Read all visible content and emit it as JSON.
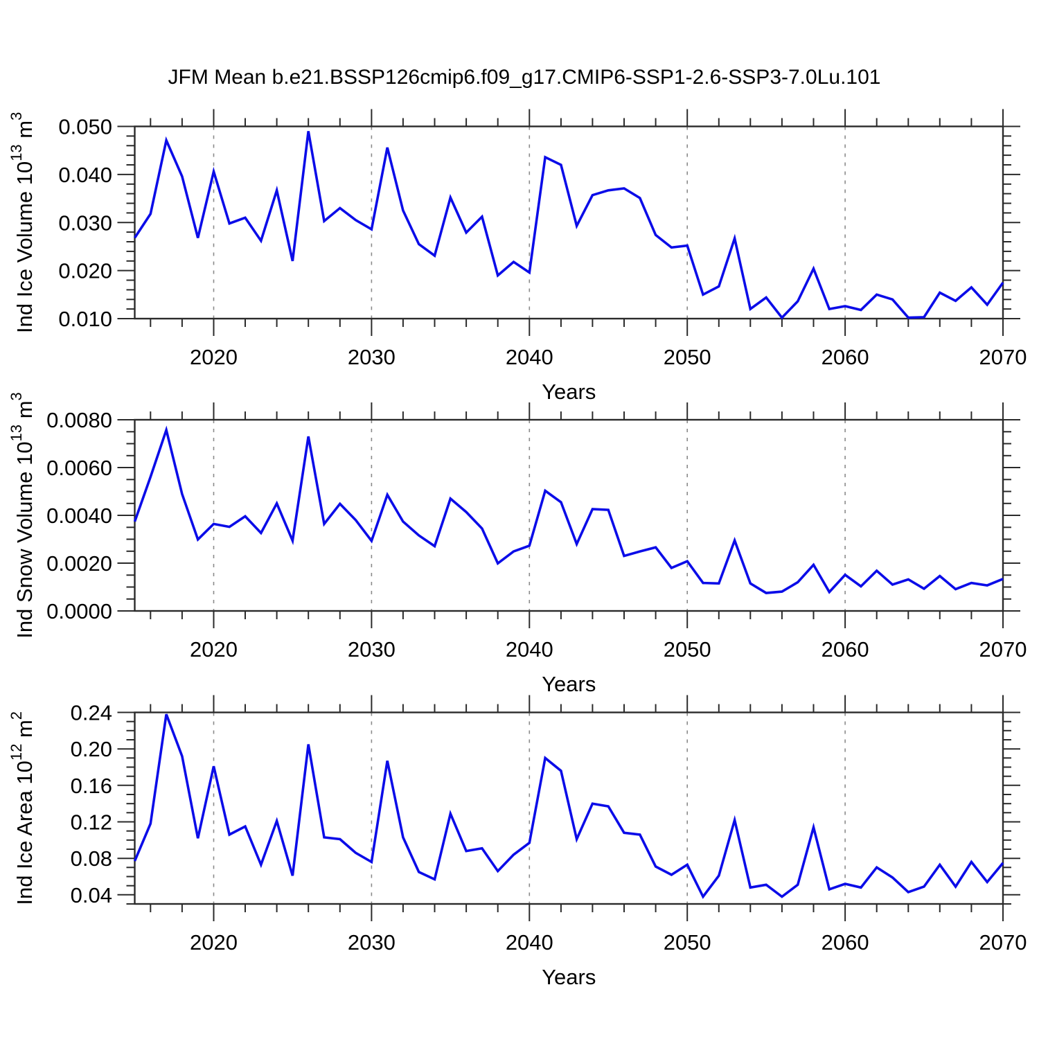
{
  "figure": {
    "title": "JFM Mean b.e21.BSSP126cmip6.f09_g17.CMIP6-SSP1-2.6-SSP3-7.0Lu.101",
    "background": "#ffffff"
  },
  "colors": {
    "line": "#0b0ce8",
    "frame": "#2a2a2a",
    "grid": "#8a8a8a",
    "text": "#000000"
  },
  "chart_data": [
    {
      "type": "line",
      "title": "",
      "xlabel": "Years",
      "ylabel_plain": "Ind Ice Volume 10^13 m^3",
      "ylabel_segments": [
        {
          "t": "Ind Ice Volume 10"
        },
        {
          "t": "13",
          "sup": true
        },
        {
          "t": " m"
        },
        {
          "t": "3",
          "sup": true
        }
      ],
      "x": [
        2015,
        2016,
        2017,
        2018,
        2019,
        2020,
        2021,
        2022,
        2023,
        2024,
        2025,
        2026,
        2027,
        2028,
        2029,
        2030,
        2031,
        2032,
        2033,
        2034,
        2035,
        2036,
        2037,
        2038,
        2039,
        2040,
        2041,
        2042,
        2043,
        2044,
        2045,
        2046,
        2047,
        2048,
        2049,
        2050,
        2051,
        2052,
        2053,
        2054,
        2055,
        2056,
        2057,
        2058,
        2059,
        2060,
        2061,
        2062,
        2063,
        2064,
        2065,
        2066,
        2067,
        2068,
        2069,
        2070
      ],
      "series": [
        {
          "name": "ice-volume",
          "values": [
            0.0268,
            0.0318,
            0.0471,
            0.0396,
            0.0268,
            0.0406,
            0.0298,
            0.031,
            0.0262,
            0.0367,
            0.022,
            0.049,
            0.0303,
            0.033,
            0.0305,
            0.0286,
            0.0456,
            0.0325,
            0.0255,
            0.0231,
            0.0352,
            0.0279,
            0.0312,
            0.019,
            0.0218,
            0.0196,
            0.0436,
            0.042,
            0.0293,
            0.0357,
            0.0367,
            0.0371,
            0.0351,
            0.0274,
            0.0248,
            0.0252,
            0.015,
            0.0167,
            0.0267,
            0.012,
            0.0144,
            0.0102,
            0.0136,
            0.0204,
            0.012,
            0.0126,
            0.0118,
            0.015,
            0.014,
            0.0102,
            0.0103,
            0.0154,
            0.0137,
            0.0165,
            0.0129,
            0.0175
          ]
        }
      ],
      "xlim": [
        2015,
        2070
      ],
      "ylim": [
        0.01,
        0.05
      ],
      "ytick_labels": [
        "0.010",
        "0.020",
        "0.030",
        "0.040",
        "0.050"
      ],
      "y_major_step": 0.01,
      "y_minor_step": 0.002,
      "ytick_decimals": 3,
      "xtick_labels": [
        "2020",
        "2030",
        "2040",
        "2050",
        "2060",
        "2070"
      ],
      "x_major_step": 10,
      "x_minor_step": 2,
      "grid_x": [
        2020,
        2030,
        2040,
        2050,
        2060
      ],
      "grid_on": "vertical-dashed",
      "legend": "none"
    },
    {
      "type": "line",
      "title": "",
      "xlabel": "Years",
      "ylabel_plain": "Ind Snow Volume 10^13 m^3",
      "ylabel_segments": [
        {
          "t": "Ind Snow Volume 10"
        },
        {
          "t": "13",
          "sup": true
        },
        {
          "t": " m"
        },
        {
          "t": "3",
          "sup": true
        }
      ],
      "x": [
        2015,
        2016,
        2017,
        2018,
        2019,
        2020,
        2021,
        2022,
        2023,
        2024,
        2025,
        2026,
        2027,
        2028,
        2029,
        2030,
        2031,
        2032,
        2033,
        2034,
        2035,
        2036,
        2037,
        2038,
        2039,
        2040,
        2041,
        2042,
        2043,
        2044,
        2045,
        2046,
        2047,
        2048,
        2049,
        2050,
        2051,
        2052,
        2053,
        2054,
        2055,
        2056,
        2057,
        2058,
        2059,
        2060,
        2061,
        2062,
        2063,
        2064,
        2065,
        2066,
        2067,
        2068,
        2069,
        2070
      ],
      "series": [
        {
          "name": "snow-volume",
          "values": [
            0.00374,
            0.00561,
            0.00757,
            0.00489,
            0.00299,
            0.00364,
            0.00352,
            0.00396,
            0.00326,
            0.0045,
            0.00294,
            0.0073,
            0.00364,
            0.00448,
            0.0038,
            0.00293,
            0.00486,
            0.00374,
            0.00316,
            0.00271,
            0.0047,
            0.00414,
            0.00345,
            0.00199,
            0.00249,
            0.00273,
            0.00503,
            0.00455,
            0.0028,
            0.00426,
            0.00423,
            0.0023,
            0.00249,
            0.00266,
            0.0018,
            0.00208,
            0.00117,
            0.00115,
            0.00295,
            0.00115,
            0.00075,
            0.00081,
            0.0012,
            0.00193,
            0.00079,
            0.00151,
            0.00103,
            0.00168,
            0.0011,
            0.00132,
            0.00093,
            0.00146,
            0.00091,
            0.00117,
            0.00107,
            0.00134
          ]
        }
      ],
      "xlim": [
        2015,
        2070
      ],
      "ylim": [
        0.0,
        0.008
      ],
      "ytick_labels": [
        "0.0000",
        "0.0020",
        "0.0040",
        "0.0060",
        "0.0080"
      ],
      "y_major_step": 0.002,
      "y_minor_step": 0.0005,
      "ytick_decimals": 4,
      "xtick_labels": [
        "2020",
        "2030",
        "2040",
        "2050",
        "2060",
        "2070"
      ],
      "x_major_step": 10,
      "x_minor_step": 2,
      "grid_x": [
        2020,
        2030,
        2040,
        2050,
        2060
      ],
      "grid_on": "vertical-dashed",
      "legend": "none"
    },
    {
      "type": "line",
      "title": "",
      "xlabel": "Years",
      "ylabel_plain": "Ind Ice Area 10^12 m^2",
      "ylabel_segments": [
        {
          "t": "Ind Ice Area 10"
        },
        {
          "t": "12",
          "sup": true
        },
        {
          "t": " m"
        },
        {
          "t": "2",
          "sup": true
        }
      ],
      "x": [
        2015,
        2016,
        2017,
        2018,
        2019,
        2020,
        2021,
        2022,
        2023,
        2024,
        2025,
        2026,
        2027,
        2028,
        2029,
        2030,
        2031,
        2032,
        2033,
        2034,
        2035,
        2036,
        2037,
        2038,
        2039,
        2040,
        2041,
        2042,
        2043,
        2044,
        2045,
        2046,
        2047,
        2048,
        2049,
        2050,
        2051,
        2052,
        2053,
        2054,
        2055,
        2056,
        2057,
        2058,
        2059,
        2060,
        2061,
        2062,
        2063,
        2064,
        2065,
        2066,
        2067,
        2068,
        2069,
        2070
      ],
      "series": [
        {
          "name": "ice-area",
          "values": [
            0.077,
            0.118,
            0.238,
            0.192,
            0.102,
            0.181,
            0.106,
            0.115,
            0.073,
            0.121,
            0.061,
            0.205,
            0.103,
            0.101,
            0.086,
            0.076,
            0.187,
            0.103,
            0.065,
            0.057,
            0.129,
            0.088,
            0.091,
            0.066,
            0.084,
            0.097,
            0.19,
            0.176,
            0.101,
            0.14,
            0.137,
            0.108,
            0.106,
            0.071,
            0.062,
            0.073,
            0.038,
            0.061,
            0.122,
            0.048,
            0.051,
            0.038,
            0.051,
            0.114,
            0.046,
            0.052,
            0.048,
            0.07,
            0.059,
            0.043,
            0.049,
            0.073,
            0.049,
            0.076,
            0.054,
            0.075
          ]
        }
      ],
      "xlim": [
        2015,
        2070
      ],
      "ylim": [
        0.03,
        0.24
      ],
      "ytick_labels": [
        "0.04",
        "0.08",
        "0.12",
        "0.16",
        "0.20",
        "0.24"
      ],
      "y_major_step": 0.04,
      "y_minor_step": 0.01,
      "ytick_decimals": 2,
      "xtick_labels": [
        "2020",
        "2030",
        "2040",
        "2050",
        "2060",
        "2070"
      ],
      "x_major_step": 10,
      "x_minor_step": 2,
      "grid_x": [
        2020,
        2030,
        2040,
        2050,
        2060
      ],
      "grid_on": "vertical-dashed",
      "legend": "none"
    }
  ]
}
